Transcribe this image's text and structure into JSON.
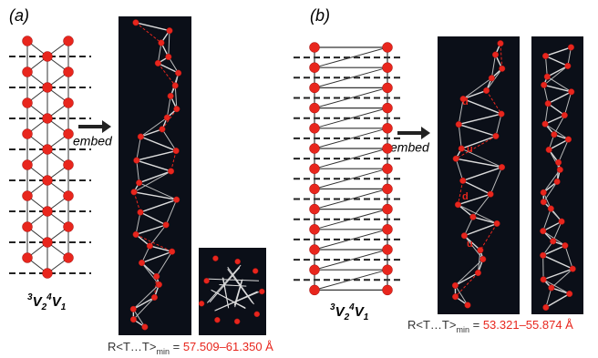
{
  "panel_a": {
    "tag": "(a)",
    "action": "embed",
    "notation": [
      "3",
      "V",
      "2",
      "4",
      "V",
      "1"
    ],
    "caption": {
      "symbol": "R<T…T>",
      "subscript": "min",
      "equals": " = ",
      "range": "57.509–61.350 Å"
    }
  },
  "panel_b": {
    "tag": "(b)",
    "action": "embed",
    "notation": [
      "3",
      "V",
      "2",
      "4",
      "V",
      "1"
    ],
    "bond_labels": [
      "d",
      "u",
      "d",
      "u"
    ],
    "caption": {
      "symbol": "R<T…T>",
      "subscript": "min",
      "equals": " = ",
      "range": "53.321–55.874 Å"
    }
  }
}
